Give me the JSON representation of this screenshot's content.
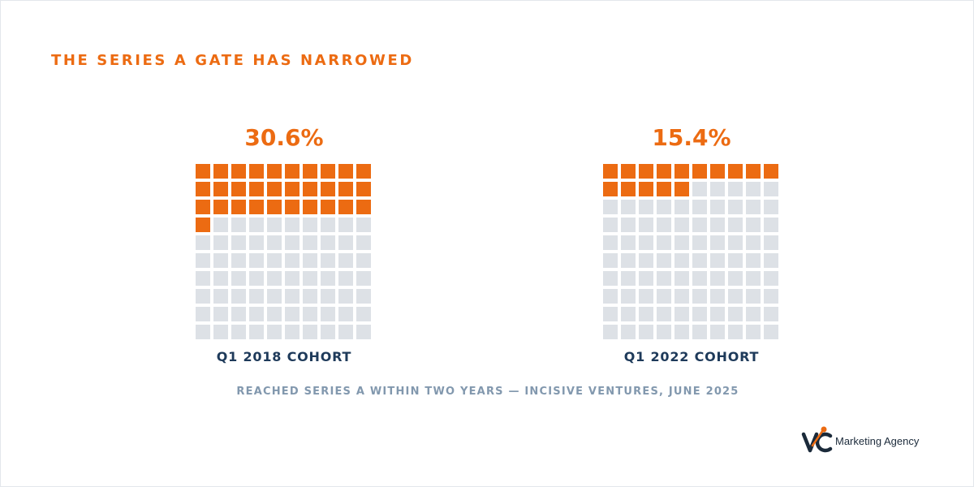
{
  "title": "THE SERIES A GATE HAS NARROWED",
  "colors": {
    "filled": "#ec6b12",
    "empty": "#dde1e6",
    "title": "#ec6b12",
    "cohort": "#1e3a5a",
    "caption": "#8298ae"
  },
  "chart_data": [
    {
      "type": "waffle",
      "grid": [
        10,
        10
      ],
      "value_percent": 30.6,
      "value_label": "30.6%",
      "filled_cells": 31,
      "category_label": "Q1 2018 COHORT"
    },
    {
      "type": "waffle",
      "grid": [
        10,
        10
      ],
      "value_percent": 15.4,
      "value_label": "15.4%",
      "filled_cells": 15,
      "category_label": "Q1 2022 COHORT"
    }
  ],
  "caption": "REACHED SERIES A WITHIN TWO YEARS — INCISIVE VENTURES, JUNE 2025",
  "brand": {
    "logo_text": "VC",
    "name": "Marketing Agency"
  }
}
